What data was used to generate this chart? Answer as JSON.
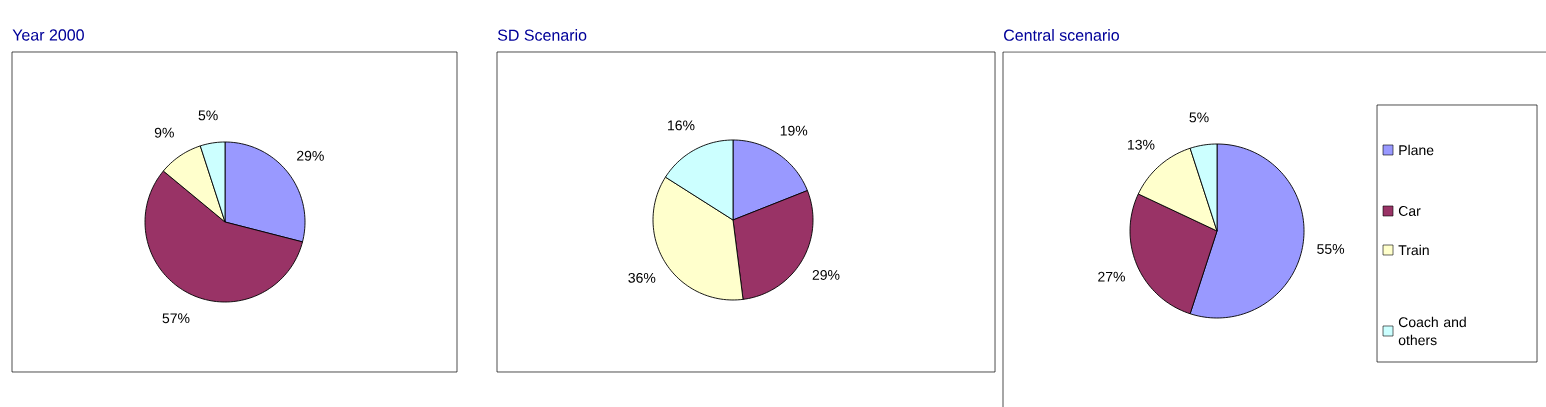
{
  "chart_data": [
    {
      "type": "pie",
      "title": "Year 2000",
      "categories": [
        null,
        null,
        null,
        null
      ],
      "values": [
        29,
        57,
        9,
        5
      ],
      "value_labels": [
        "29%",
        "57%",
        "9%",
        "5%"
      ],
      "colors": [
        "#9999ff",
        "#993366",
        "#ffffcc",
        "#ccffff"
      ],
      "legend": false
    },
    {
      "type": "pie",
      "title": "SD Scenario",
      "categories": [
        null,
        null,
        null,
        null
      ],
      "values": [
        19,
        29,
        36,
        16
      ],
      "value_labels": [
        "19%",
        "29%",
        "36%",
        "16%"
      ],
      "colors": [
        "#9999ff",
        "#993366",
        "#ffffcc",
        "#ccffff"
      ],
      "legend": false
    },
    {
      "type": "pie",
      "title": "Central scenario",
      "categories": [
        "Plane",
        "Car",
        "Train",
        "Coach and others"
      ],
      "values": [
        55,
        27,
        13,
        5
      ],
      "value_labels": [
        "55%",
        "27%",
        "13%",
        "5%"
      ],
      "colors": [
        "#9999ff",
        "#993366",
        "#ffffcc",
        "#ccffff"
      ],
      "legend": "right"
    }
  ]
}
